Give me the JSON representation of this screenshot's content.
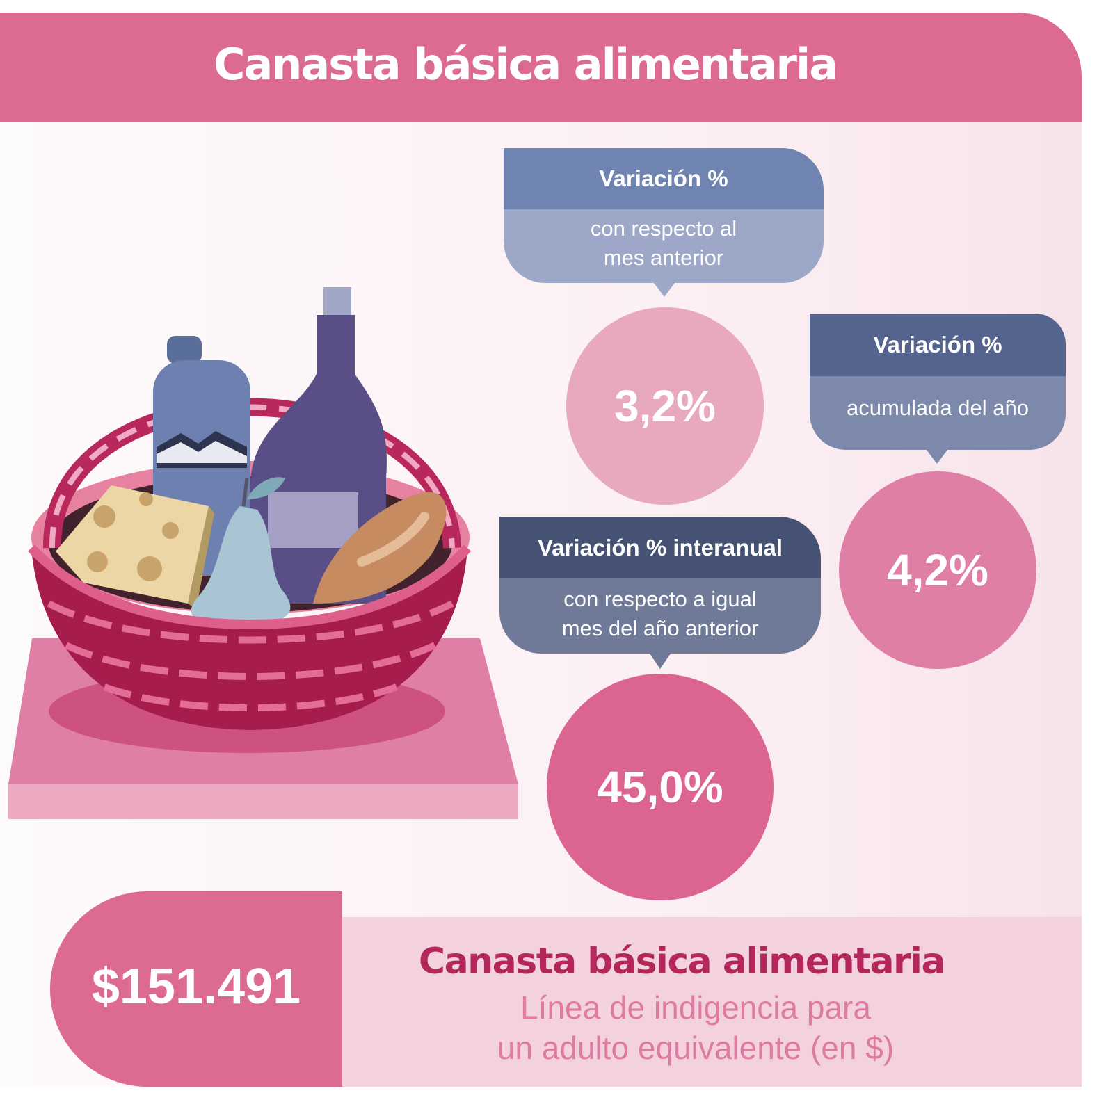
{
  "header": {
    "title": "Canasta básica alimentaria"
  },
  "cards": [
    {
      "head": "Variación %",
      "body_lines": [
        "con respecto al",
        "mes anterior"
      ],
      "value": "3,2%"
    },
    {
      "head": "Variación %",
      "body_lines": [
        "acumulada del año"
      ],
      "value": "4,2%"
    },
    {
      "head": "Variación % interanual",
      "body_lines": [
        "con respecto a igual",
        "mes del año anterior"
      ],
      "value": "45,0%"
    }
  ],
  "bottom": {
    "price": "$151.491",
    "title": "Canasta básica alimentaria",
    "subtitle_lines": [
      "Línea de indigencia para",
      "un adulto equivalente (en $)"
    ]
  },
  "illustration": {
    "icon": "food-basket-illustration"
  },
  "colors": {
    "accent_pink": "#dc6a93",
    "dark_pink": "#b3275a",
    "navy": "#465273",
    "slate_blue": "#6f84b1"
  }
}
